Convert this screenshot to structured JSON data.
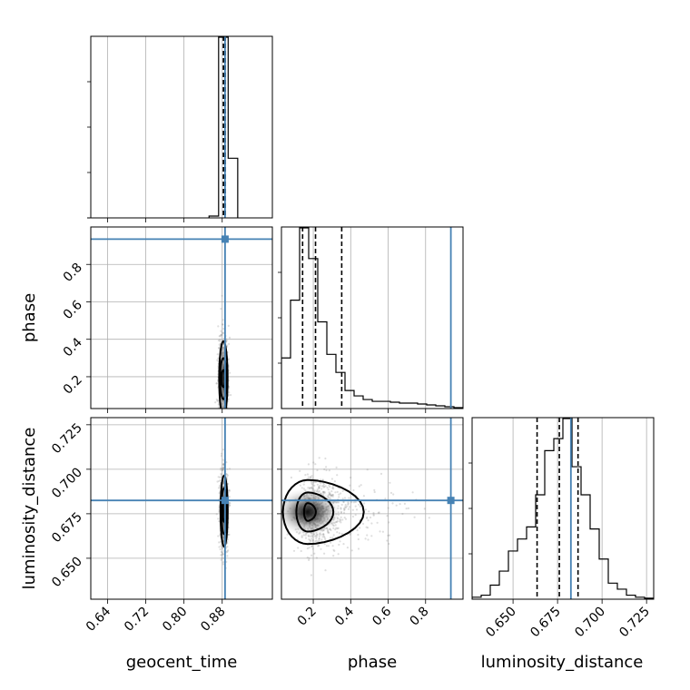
{
  "chart_data": {
    "type": "corner",
    "parameters": [
      "geocent_time",
      "phase",
      "luminosity_distance"
    ],
    "colors": {
      "truth": "#4682b4",
      "samples": "#888888",
      "grid": "#b0b0b0"
    },
    "grid": true,
    "axes": {
      "geocent_time": {
        "label": "geocent_time",
        "range": [
          0.605,
          0.985
        ],
        "ticks": [
          0.64,
          0.72,
          0.8,
          0.88
        ],
        "tick_labels": [
          "0.64",
          "0.72",
          "0.80",
          "0.88"
        ]
      },
      "phase": {
        "label": "phase",
        "range": [
          0.03,
          1.0
        ],
        "ticks": [
          0.2,
          0.4,
          0.6,
          0.8
        ],
        "tick_labels": [
          "0.2",
          "0.4",
          "0.6",
          "0.8"
        ]
      },
      "luminosity_distance": {
        "label": "luminosity_distance",
        "range": [
          0.627,
          0.729
        ],
        "ticks": [
          0.65,
          0.675,
          0.7,
          0.725
        ],
        "tick_labels": [
          "0.650",
          "0.675",
          "0.700",
          "0.725"
        ]
      }
    },
    "truths": {
      "geocent_time": 0.886,
      "phase": 0.935,
      "luminosity_distance": 0.6825
    },
    "quantiles": {
      "geocent_time": [
        0.8825,
        0.8845,
        0.8865
      ],
      "phase": [
        0.143,
        0.212,
        0.352
      ],
      "luminosity_distance": [
        0.6635,
        0.676,
        0.6865
      ]
    },
    "histograms": {
      "geocent_time": {
        "edges": [
          0.8525,
          0.8725,
          0.8925,
          0.9125
        ],
        "counts": [
          0.01,
          1.0,
          0.33
        ]
      },
      "phase": {
        "edges": [
          0.03,
          0.0785,
          0.127,
          0.1755,
          0.224,
          0.2725,
          0.321,
          0.3695,
          0.418,
          0.4665,
          0.515,
          0.5635,
          0.612,
          0.6605,
          0.709,
          0.7575,
          0.806,
          0.8545,
          0.903,
          0.9515,
          1.0
        ],
        "counts": [
          0.28,
          0.6,
          1.0,
          0.83,
          0.48,
          0.3,
          0.2,
          0.1,
          0.07,
          0.05,
          0.04,
          0.04,
          0.035,
          0.03,
          0.03,
          0.025,
          0.02,
          0.015,
          0.01,
          0.005
        ]
      },
      "luminosity_distance": {
        "edges": [
          0.627,
          0.6321,
          0.6372,
          0.6423,
          0.6474,
          0.6525,
          0.6576,
          0.6627,
          0.6678,
          0.6729,
          0.678,
          0.6831,
          0.6882,
          0.6933,
          0.6984,
          0.7035,
          0.7086,
          0.7137,
          0.7188,
          0.7239,
          0.729
        ],
        "counts": [
          0.01,
          0.02,
          0.07,
          0.14,
          0.24,
          0.3,
          0.36,
          0.52,
          0.74,
          0.8,
          0.9,
          0.66,
          0.52,
          0.35,
          0.2,
          0.08,
          0.05,
          0.02,
          0.01,
          0.005
        ]
      }
    },
    "contours": {
      "geocent_time__phase": {
        "center": [
          0.8825,
          0.19
        ],
        "levels": [
          [
            0.004,
            0.045
          ],
          [
            0.0068,
            0.11
          ],
          [
            0.0088,
            0.2
          ]
        ]
      },
      "geocent_time__luminosity_distance": {
        "center": [
          0.884,
          0.6765
        ],
        "levels": [
          [
            0.003,
            0.006
          ],
          [
            0.0055,
            0.013
          ],
          [
            0.0075,
            0.02
          ]
        ]
      },
      "phase__luminosity_distance": {
        "center": [
          0.17,
          0.676
        ],
        "levels": [
          [
            0.035,
            0.005
          ],
          [
            0.11,
            0.011
          ],
          [
            0.24,
            0.018
          ]
        ]
      }
    }
  }
}
